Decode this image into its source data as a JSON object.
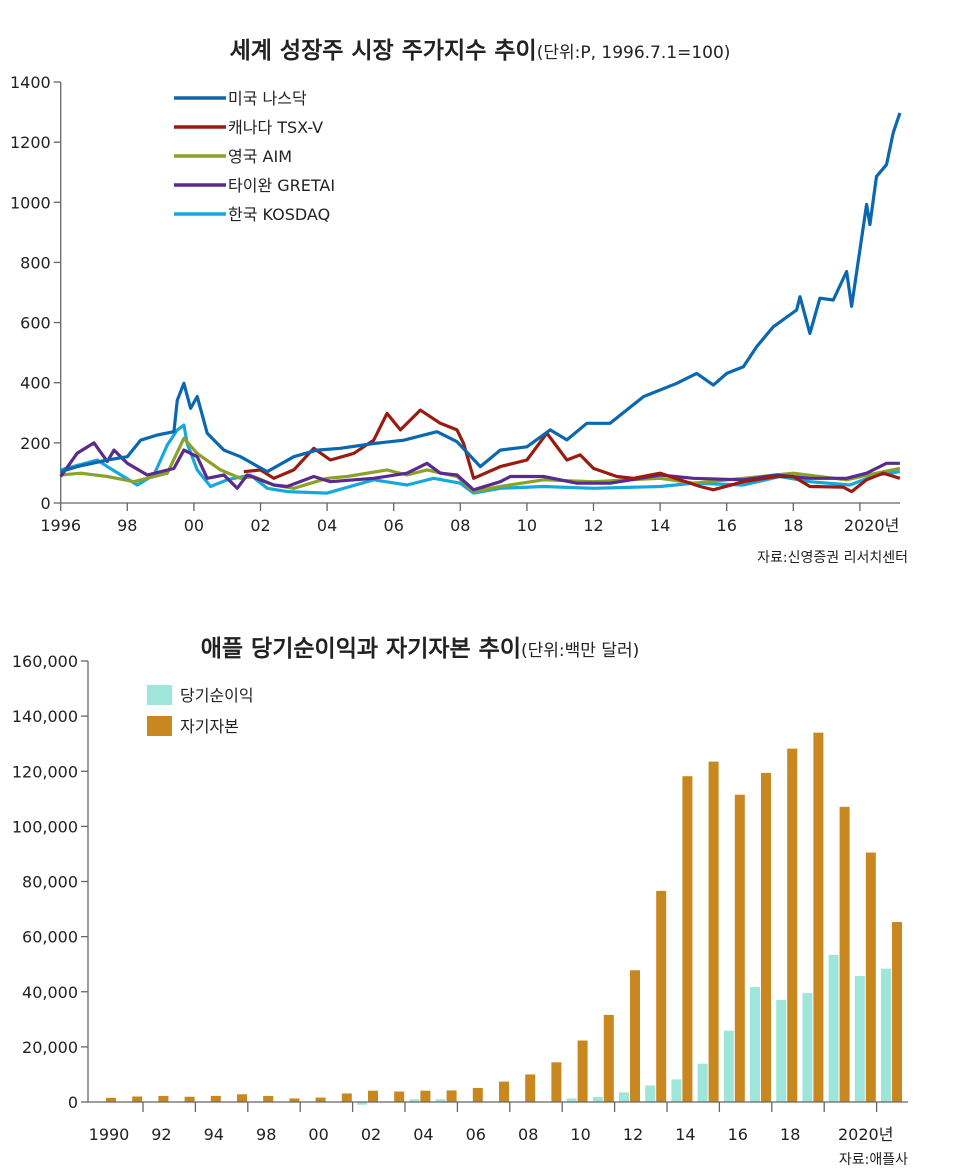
{
  "chart_data": [
    {
      "type": "line",
      "title": "세계 성장주 시장 주가지수 추이",
      "unit_note": "(단위:P, 1996.7.1=100)",
      "source": "자료:신영증권 리서치센터",
      "xlim": [
        1996,
        2021.3
      ],
      "ylim": [
        0,
        1400
      ],
      "x_ticks": [
        1996,
        1998,
        2000,
        2002,
        2004,
        2006,
        2008,
        2010,
        2012,
        2014,
        2016,
        2018,
        2020
      ],
      "x_tick_labels": [
        "1996",
        "98",
        "00",
        "02",
        "04",
        "06",
        "08",
        "10",
        "12",
        "14",
        "16",
        "18",
        "2020년"
      ],
      "y_ticks": [
        0,
        200,
        400,
        600,
        800,
        1000,
        1200,
        1400
      ],
      "y_tick_labels": [
        "0",
        "200",
        "400",
        "600",
        "800",
        "1000",
        "1200",
        "1400"
      ],
      "grid": false,
      "legend_placement": "top-left",
      "series": [
        {
          "name": "미국 나스닥",
          "color": "#0a67b0",
          "points": [
            [
              1996.0,
              104
            ],
            [
              1996.5,
              121
            ],
            [
              1997.4,
              143
            ],
            [
              1998.0,
              154
            ],
            [
              1998.4,
              209
            ],
            [
              1998.9,
              226
            ],
            [
              1999.4,
              237
            ],
            [
              1999.5,
              342
            ],
            [
              1999.7,
              398
            ],
            [
              1999.9,
              315
            ],
            [
              2000.1,
              354
            ],
            [
              2000.4,
              232
            ],
            [
              2000.9,
              176
            ],
            [
              2001.4,
              154
            ],
            [
              2002.2,
              104
            ],
            [
              2003.0,
              154
            ],
            [
              2003.7,
              176
            ],
            [
              2004.4,
              182
            ],
            [
              2005.4,
              198
            ],
            [
              2006.3,
              209
            ],
            [
              2007.3,
              237
            ],
            [
              2007.9,
              204
            ],
            [
              2008.6,
              121
            ],
            [
              2009.2,
              176
            ],
            [
              2010.0,
              187
            ],
            [
              2010.7,
              243
            ],
            [
              2011.2,
              210
            ],
            [
              2011.8,
              265
            ],
            [
              2012.5,
              265
            ],
            [
              2013.5,
              354
            ],
            [
              2014.5,
              398
            ],
            [
              2015.1,
              431
            ],
            [
              2015.6,
              392
            ],
            [
              2016.0,
              431
            ],
            [
              2016.5,
              453
            ],
            [
              2016.9,
              520
            ],
            [
              2017.4,
              586
            ],
            [
              2018.1,
              642
            ],
            [
              2018.2,
              686
            ],
            [
              2018.5,
              564
            ],
            [
              2018.8,
              681
            ],
            [
              2019.2,
              675
            ],
            [
              2019.6,
              770
            ],
            [
              2019.75,
              654
            ],
            [
              2020.2,
              993
            ],
            [
              2020.3,
              926
            ],
            [
              2020.5,
              1086
            ],
            [
              2020.8,
              1125
            ],
            [
              2021.0,
              1231
            ],
            [
              2021.2,
              1297
            ]
          ]
        },
        {
          "name": "캐나다 TSX-V",
          "color": "#9a1b0f",
          "points": [
            [
              2001.5,
              104
            ],
            [
              2002.0,
              110
            ],
            [
              2002.4,
              82
            ],
            [
              2003.0,
              110
            ],
            [
              2003.6,
              182
            ],
            [
              2004.1,
              143
            ],
            [
              2004.8,
              165
            ],
            [
              2005.4,
              209
            ],
            [
              2005.8,
              298
            ],
            [
              2006.2,
              243
            ],
            [
              2006.8,
              309
            ],
            [
              2007.1,
              287
            ],
            [
              2007.4,
              265
            ],
            [
              2007.9,
              243
            ],
            [
              2008.1,
              198
            ],
            [
              2008.4,
              82
            ],
            [
              2009.2,
              121
            ],
            [
              2010.0,
              143
            ],
            [
              2010.6,
              232
            ],
            [
              2011.2,
              143
            ],
            [
              2011.6,
              160
            ],
            [
              2012.0,
              115
            ],
            [
              2012.7,
              88
            ],
            [
              2013.2,
              82
            ],
            [
              2014.0,
              99
            ],
            [
              2015.2,
              55
            ],
            [
              2015.6,
              44
            ],
            [
              2016.5,
              71
            ],
            [
              2017.5,
              88
            ],
            [
              2018.0,
              88
            ],
            [
              2018.5,
              55
            ],
            [
              2019.5,
              53
            ],
            [
              2019.75,
              38
            ],
            [
              2020.2,
              77
            ],
            [
              2020.7,
              99
            ],
            [
              2021.2,
              82
            ]
          ]
        },
        {
          "name": "영국 AIM",
          "color": "#8aa22a",
          "points": [
            [
              1996.0,
              93
            ],
            [
              1996.6,
              99
            ],
            [
              1997.4,
              88
            ],
            [
              1998.2,
              71
            ],
            [
              1999.2,
              99
            ],
            [
              1999.7,
              215
            ],
            [
              2000.1,
              165
            ],
            [
              2000.8,
              110
            ],
            [
              2001.4,
              82
            ],
            [
              2001.8,
              88
            ],
            [
              2002.4,
              60
            ],
            [
              2003.0,
              49
            ],
            [
              2004.0,
              82
            ],
            [
              2004.6,
              88
            ],
            [
              2005.8,
              110
            ],
            [
              2006.4,
              93
            ],
            [
              2007.0,
              110
            ],
            [
              2007.9,
              88
            ],
            [
              2008.4,
              38
            ],
            [
              2009.2,
              55
            ],
            [
              2010.5,
              77
            ],
            [
              2012.0,
              71
            ],
            [
              2014.0,
              82
            ],
            [
              2015.0,
              66
            ],
            [
              2016.5,
              82
            ],
            [
              2018.0,
              99
            ],
            [
              2019.6,
              77
            ],
            [
              2020.5,
              99
            ],
            [
              2021.2,
              115
            ]
          ]
        },
        {
          "name": "타이완 GRETAI",
          "color": "#5a2a8f",
          "points": [
            [
              1996.0,
              88
            ],
            [
              1996.5,
              166
            ],
            [
              1997.0,
              200
            ],
            [
              1997.4,
              138
            ],
            [
              1997.6,
              176
            ],
            [
              1998.0,
              132
            ],
            [
              1998.6,
              93
            ],
            [
              1999.4,
              115
            ],
            [
              1999.7,
              176
            ],
            [
              2000.1,
              154
            ],
            [
              2000.4,
              82
            ],
            [
              2000.9,
              93
            ],
            [
              2001.3,
              49
            ],
            [
              2001.6,
              93
            ],
            [
              2002.4,
              60
            ],
            [
              2002.8,
              55
            ],
            [
              2003.6,
              88
            ],
            [
              2004.1,
              71
            ],
            [
              2005.4,
              82
            ],
            [
              2006.4,
              99
            ],
            [
              2007.0,
              132
            ],
            [
              2007.4,
              99
            ],
            [
              2007.9,
              93
            ],
            [
              2008.4,
              44
            ],
            [
              2009.2,
              71
            ],
            [
              2009.5,
              88
            ],
            [
              2010.5,
              88
            ],
            [
              2011.5,
              66
            ],
            [
              2012.5,
              66
            ],
            [
              2014.0,
              93
            ],
            [
              2015.0,
              82
            ],
            [
              2016.5,
              77
            ],
            [
              2017.5,
              93
            ],
            [
              2018.5,
              82
            ],
            [
              2019.6,
              82
            ],
            [
              2020.2,
              99
            ],
            [
              2020.8,
              132
            ],
            [
              2021.2,
              132
            ]
          ]
        },
        {
          "name": "한국 KOSDAQ",
          "color": "#16a8dc",
          "points": [
            [
              1996.0,
              110
            ],
            [
              1997.1,
              143
            ],
            [
              1997.4,
              121
            ],
            [
              1998.3,
              60
            ],
            [
              1998.8,
              93
            ],
            [
              1999.2,
              193
            ],
            [
              1999.5,
              243
            ],
            [
              1999.7,
              259
            ],
            [
              1999.8,
              198
            ],
            [
              2000.1,
              110
            ],
            [
              2000.5,
              55
            ],
            [
              2001.0,
              77
            ],
            [
              2001.7,
              93
            ],
            [
              2002.2,
              49
            ],
            [
              2002.8,
              38
            ],
            [
              2004.0,
              33
            ],
            [
              2005.4,
              77
            ],
            [
              2006.4,
              60
            ],
            [
              2007.2,
              82
            ],
            [
              2008.0,
              66
            ],
            [
              2008.4,
              33
            ],
            [
              2009.2,
              49
            ],
            [
              2010.5,
              55
            ],
            [
              2012.0,
              49
            ],
            [
              2014.0,
              55
            ],
            [
              2015.0,
              66
            ],
            [
              2016.5,
              60
            ],
            [
              2017.6,
              88
            ],
            [
              2018.5,
              71
            ],
            [
              2019.7,
              60
            ],
            [
              2020.5,
              93
            ],
            [
              2021.2,
              104
            ]
          ]
        }
      ]
    },
    {
      "type": "bar",
      "title": "애플 당기순이익과 자기자본 추이",
      "unit_note": "(단위:백만 달러)",
      "source": "자료:애플사",
      "categories": [
        1990,
        1991,
        1992,
        1993,
        1994,
        1995,
        1996,
        1997,
        1998,
        1999,
        2000,
        2001,
        2002,
        2003,
        2004,
        2005,
        2006,
        2007,
        2008,
        2009,
        2010,
        2011,
        2012,
        2013,
        2014,
        2015,
        2016,
        2017,
        2018,
        2019,
        2020
      ],
      "x_tick_labels": [
        "1990",
        "92",
        "94",
        "98",
        "00",
        "02",
        "04",
        "06",
        "08",
        "10",
        "12",
        "14",
        "16",
        "18",
        "2020년"
      ],
      "ylim": [
        0,
        160000
      ],
      "y_ticks": [
        0,
        20000,
        40000,
        60000,
        80000,
        100000,
        120000,
        140000,
        160000
      ],
      "y_tick_labels": [
        "0",
        "20,000",
        "40,000",
        "60,000",
        "80,000",
        "100,000",
        "120,000",
        "140,000",
        "160,000"
      ],
      "grid": false,
      "legend_placement": "top-left",
      "series": [
        {
          "name": "당기순이익",
          "color": "#9fe6da",
          "values": [
            0,
            0,
            0,
            0,
            0,
            0,
            0,
            0,
            0,
            0,
            -1000,
            0,
            1000,
            1000,
            0,
            0,
            0,
            0,
            1300,
            1800,
            3500,
            6000,
            8200,
            13900,
            25900,
            41700,
            37000,
            39500,
            53400,
            45700,
            48400
          ]
        },
        {
          "name": "자기자본",
          "color": "#c8871f",
          "values": [
            1500,
            2000,
            2200,
            1900,
            2200,
            2800,
            2200,
            1300,
            1600,
            3100,
            4100,
            3800,
            4100,
            4200,
            5100,
            7400,
            10000,
            14400,
            22300,
            31600,
            47800,
            76600,
            118200,
            123500,
            111500,
            119400,
            128200,
            134000,
            107100,
            90500,
            65300
          ]
        }
      ]
    }
  ]
}
